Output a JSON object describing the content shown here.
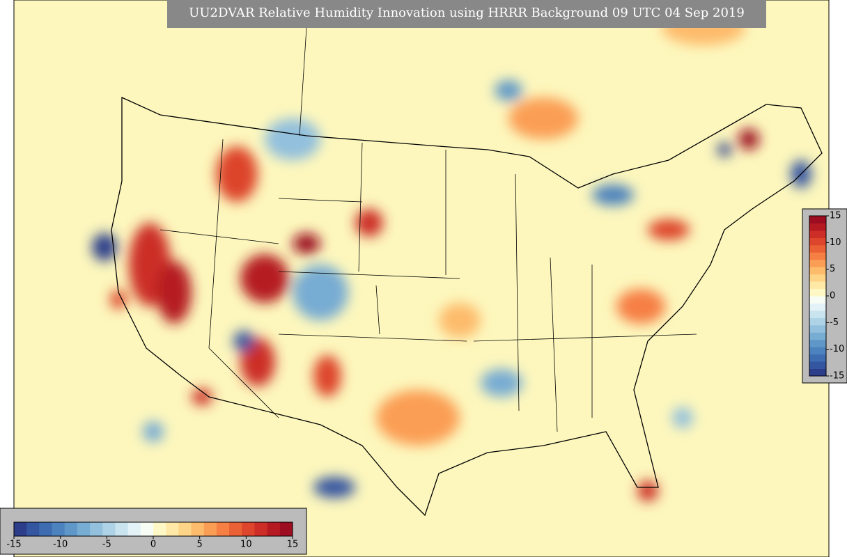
{
  "title": "UU2DVAR Relative Humidity Innovation using HRRR Background 09 UTC 04 Sep 2019",
  "colorbar": {
    "min": -15,
    "max": 15,
    "ticks": [
      -15,
      -10,
      -5,
      0,
      5,
      10,
      15
    ],
    "colors": [
      "#2c3d8a",
      "#3455a0",
      "#3d6db0",
      "#4c82bd",
      "#5f98c8",
      "#77acd3",
      "#92c0dd",
      "#aed3e6",
      "#c9e4ef",
      "#e3f2f6",
      "#f7fcf4",
      "#fdf8c6",
      "#fee9a6",
      "#fed487",
      "#fdbb6c",
      "#fb9e55",
      "#f67f44",
      "#ea6136",
      "#dd452c",
      "#cc2d26",
      "#b51a23",
      "#9c0d22"
    ]
  }
}
